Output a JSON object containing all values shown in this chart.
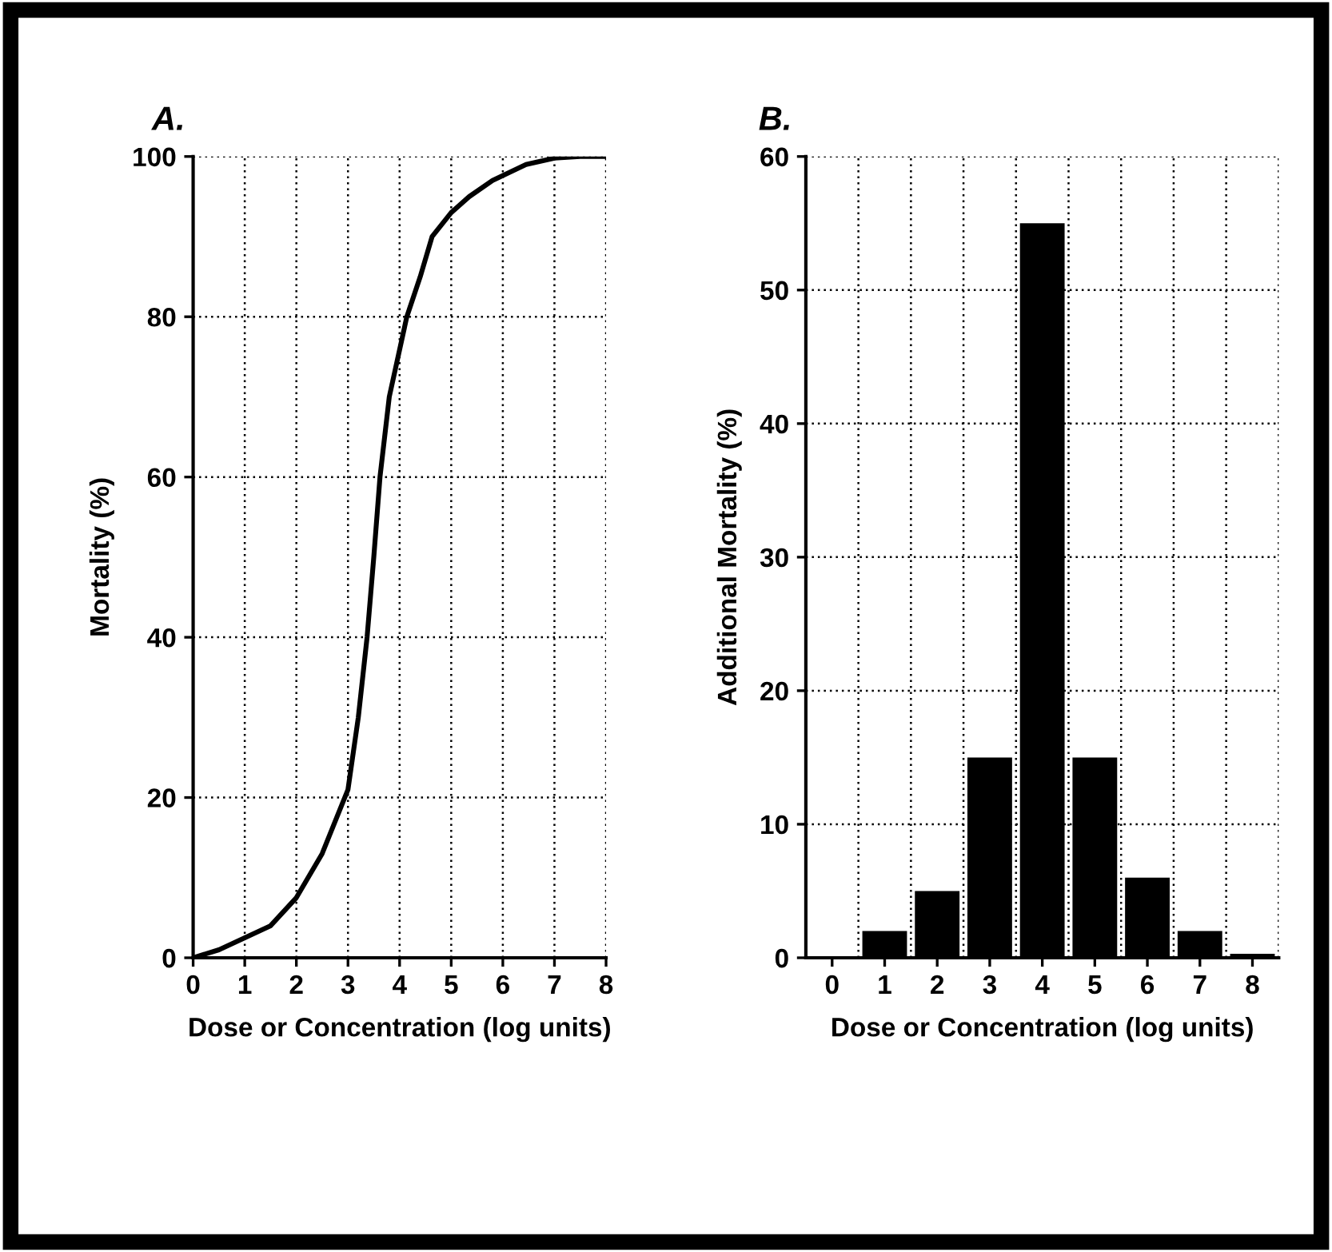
{
  "chart_data": [
    {
      "type": "line",
      "title": "A.",
      "xlabel": "Dose or Concentration (log units)",
      "ylabel": "Mortality (%)",
      "x": [
        0,
        0.5,
        1,
        1.5,
        2,
        2.5,
        3,
        3.2,
        3.37,
        3.5,
        3.62,
        3.8,
        4.14,
        4.4,
        4.63,
        5,
        5.35,
        5.8,
        6.45,
        7,
        7.5,
        8
      ],
      "series": [
        {
          "color": "#000000",
          "values": [
            0,
            1,
            2.5,
            4,
            7.5,
            13,
            21,
            30,
            40,
            50,
            60,
            70,
            80,
            85,
            90,
            93,
            95,
            97,
            99,
            99.8,
            100,
            100
          ]
        }
      ],
      "xlim": [
        0,
        8
      ],
      "xticks": [
        0,
        1,
        2,
        3,
        4,
        5,
        6,
        7,
        8
      ],
      "ylim": [
        0,
        100
      ],
      "yticks": [
        0,
        20,
        40,
        60,
        80,
        100
      ],
      "grid": true,
      "marker": "none",
      "line_style": "solid"
    },
    {
      "type": "bar",
      "title": "B.",
      "xlabel": "Dose or Concentration (log units)",
      "ylabel": "Additional Mortality (%)",
      "categories": [
        "0",
        "1",
        "2",
        "3",
        "4",
        "5",
        "6",
        "7",
        "8"
      ],
      "series": [
        {
          "color": "#000000",
          "values": [
            0,
            2,
            5,
            15,
            55,
            15,
            6,
            2,
            0.3
          ]
        }
      ],
      "ylim": [
        0,
        60
      ],
      "yticks": [
        0,
        10,
        20,
        30,
        40,
        50,
        60
      ],
      "grid": true
    }
  ]
}
